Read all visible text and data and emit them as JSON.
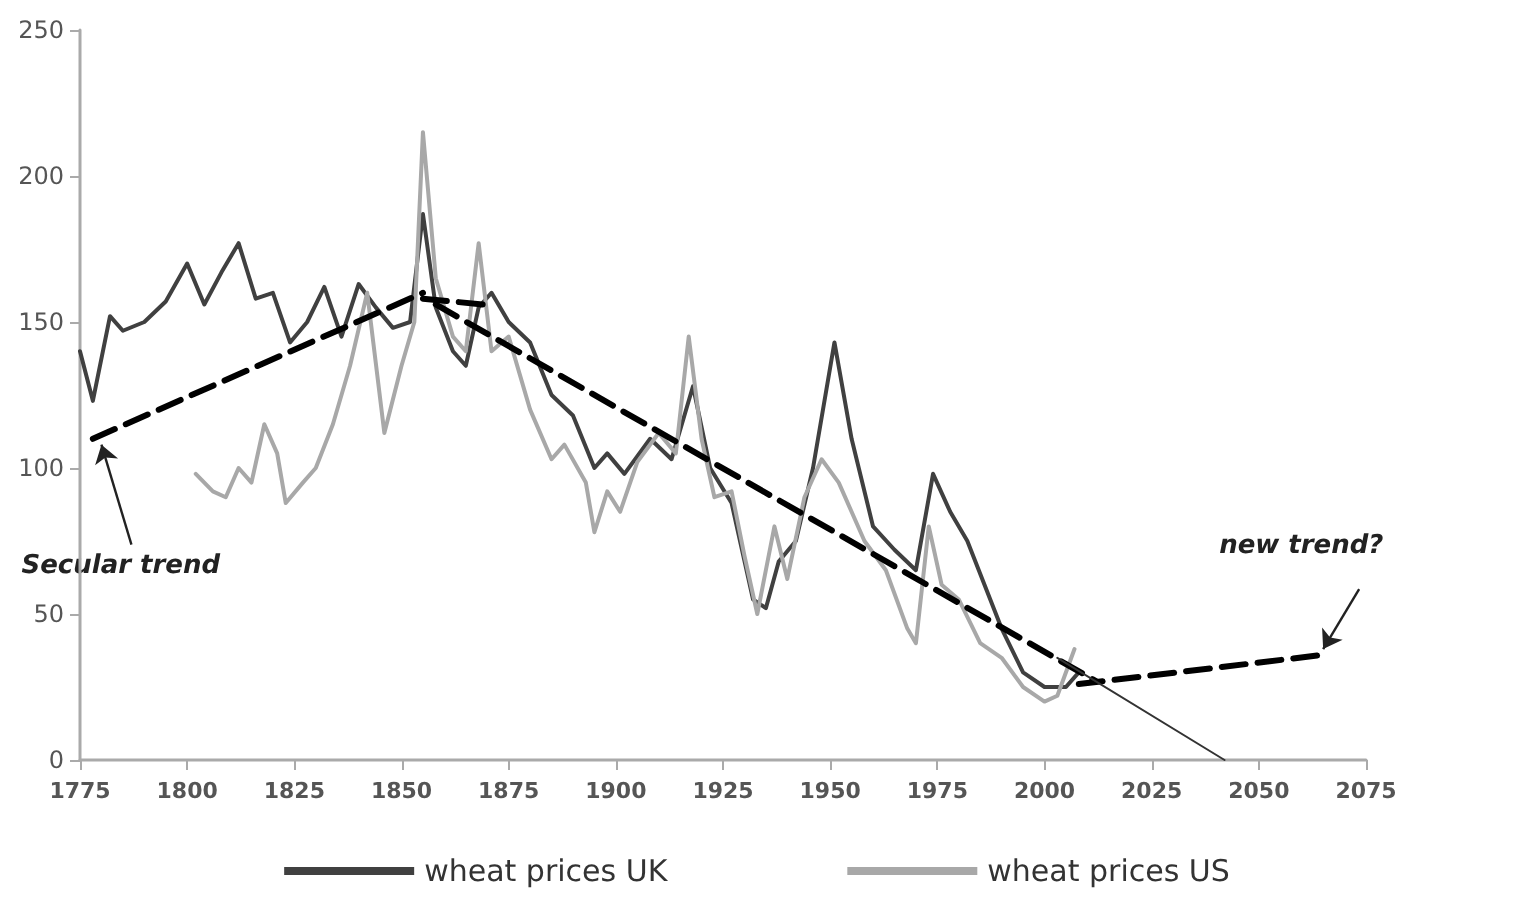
{
  "chart_data": {
    "type": "line",
    "legend": "bottom",
    "grid": false,
    "marker": "none",
    "xlim": [
      1775,
      2075
    ],
    "xticks": [
      1775,
      1800,
      1825,
      1850,
      1875,
      1900,
      1925,
      1950,
      1975,
      2000,
      2025,
      2050,
      2075
    ],
    "ylim": [
      0,
      250
    ],
    "yticks": [
      0,
      50,
      100,
      150,
      200,
      250
    ],
    "series": [
      {
        "name": "wheat prices UK",
        "color": "#404040",
        "line_style": "solid",
        "x": [
          1775,
          1778,
          1782,
          1785,
          1790,
          1795,
          1800,
          1804,
          1808,
          1812,
          1816,
          1820,
          1824,
          1828,
          1832,
          1836,
          1840,
          1844,
          1848,
          1852,
          1855,
          1858,
          1862,
          1865,
          1868,
          1871,
          1875,
          1880,
          1885,
          1890,
          1895,
          1898,
          1902,
          1908,
          1913,
          1918,
          1922,
          1927,
          1932,
          1935,
          1938,
          1942,
          1946,
          1951,
          1955,
          1960,
          1965,
          1970,
          1974,
          1978,
          1982,
          1986,
          1990,
          1995,
          2000,
          2005,
          2008
        ],
        "values": [
          140,
          123,
          152,
          147,
          150,
          157,
          170,
          156,
          167,
          177,
          158,
          160,
          143,
          150,
          162,
          145,
          163,
          155,
          148,
          150,
          187,
          155,
          140,
          135,
          155,
          160,
          150,
          143,
          125,
          118,
          100,
          105,
          98,
          110,
          103,
          128,
          100,
          88,
          55,
          52,
          68,
          75,
          100,
          143,
          110,
          80,
          72,
          65,
          98,
          85,
          75,
          60,
          45,
          30,
          25,
          25,
          30
        ]
      },
      {
        "name": "wheat prices US",
        "color": "#a8a8a8",
        "line_style": "solid",
        "x": [
          1802,
          1806,
          1809,
          1812,
          1815,
          1818,
          1821,
          1823,
          1827,
          1830,
          1834,
          1838,
          1842,
          1846,
          1850,
          1853,
          1855,
          1858,
          1862,
          1865,
          1868,
          1871,
          1875,
          1880,
          1885,
          1888,
          1893,
          1895,
          1898,
          1901,
          1905,
          1910,
          1914,
          1917,
          1920,
          1923,
          1927,
          1930,
          1933,
          1937,
          1940,
          1944,
          1948,
          1952,
          1958,
          1963,
          1968,
          1970,
          1973,
          1976,
          1980,
          1985,
          1990,
          1995,
          2000,
          2003,
          2007
        ],
        "values": [
          98,
          92,
          90,
          100,
          95,
          115,
          105,
          88,
          95,
          100,
          115,
          135,
          160,
          112,
          135,
          150,
          215,
          165,
          145,
          140,
          177,
          140,
          145,
          120,
          103,
          108,
          95,
          78,
          92,
          85,
          102,
          112,
          105,
          145,
          110,
          90,
          92,
          70,
          50,
          80,
          62,
          90,
          103,
          95,
          75,
          65,
          45,
          40,
          80,
          60,
          55,
          40,
          35,
          25,
          20,
          22,
          38
        ]
      },
      {
        "color": "#000000",
        "line_style": "dashed",
        "x": [
          1778,
          1855
        ],
        "values": [
          110,
          160
        ]
      },
      {
        "color": "#000000",
        "line_style": "dashed",
        "x": [
          1855,
          1869
        ],
        "values": [
          158,
          156
        ]
      },
      {
        "color": "#000000",
        "line_style": "dashed",
        "x": [
          1858,
          2012
        ],
        "values": [
          156,
          27
        ]
      },
      {
        "color": "#000000",
        "line_style": "dashed",
        "x": [
          2008,
          2065
        ],
        "values": [
          26,
          36
        ]
      },
      {
        "color": "#333333",
        "line_style": "solid",
        "x": [
          2003,
          2042
        ],
        "values": [
          35,
          0
        ]
      }
    ],
    "annotations": [
      {
        "text": "Secular trend",
        "x": 1780,
        "y": 108
      },
      {
        "text": "new trend?",
        "x": 2065,
        "y": 38
      }
    ]
  }
}
